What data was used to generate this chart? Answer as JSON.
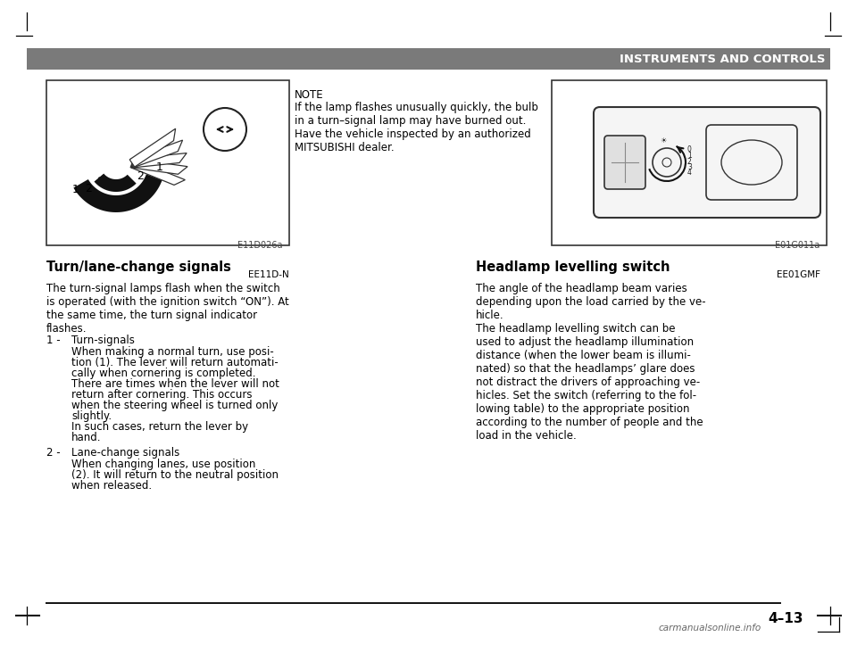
{
  "bg_color": "#ffffff",
  "header_color": "#7a7a7a",
  "header_text": "INSTRUMENTS AND CONTROLS",
  "header_text_color": "#ffffff",
  "page_number": "4–13",
  "left_section_title": "Turn/lane-change signals",
  "left_section_code": "EE11D-N",
  "left_para1": "The turn-signal lamps flash when the switch\nis operated (with the ignition switch “ON”). At\nthe same time, the turn signal indicator\nflashes.",
  "left_list": [
    {
      "num": "1 -",
      "title": "Turn-signals",
      "body": "When making a normal turn, use posi-\ntion (1). The lever will return automati-\ncally when cornering is completed.\nThere are times when the lever will not\nreturn after cornering. This occurs\nwhen the steering wheel is turned only\nslightly.\nIn such cases, return the lever by\nhand."
    },
    {
      "num": "2 -",
      "title": "Lane-change signals",
      "body": "When changing lanes, use position\n(2). It will return to the neutral position\nwhen released."
    }
  ],
  "note_title": "NOTE",
  "note_body": "If the lamp flashes unusually quickly, the bulb\nin a turn–signal lamp may have burned out.\nHave the vehicle inspected by an authorized\nMITSUBISHI dealer.",
  "left_fig_label": "E11D026a",
  "right_fig_label": "E01G011a",
  "right_section_title": "Headlamp levelling switch",
  "right_section_code": "EE01GMF",
  "right_para1": "The angle of the headlamp beam varies\ndepending upon the load carried by the ve-\nhicle.\nThe headlamp levelling switch can be\nused to adjust the headlamp illumination\ndistance (when the lower beam is illumi-\nnated) so that the headlamps’ glare does\nnot distract the drivers of approaching ve-\nhicles. Set the switch (referring to the fol-\nlowing table) to the appropriate position\naccording to the number of people and the\nload in the vehicle.",
  "watermark": "carmanualsonline.info"
}
